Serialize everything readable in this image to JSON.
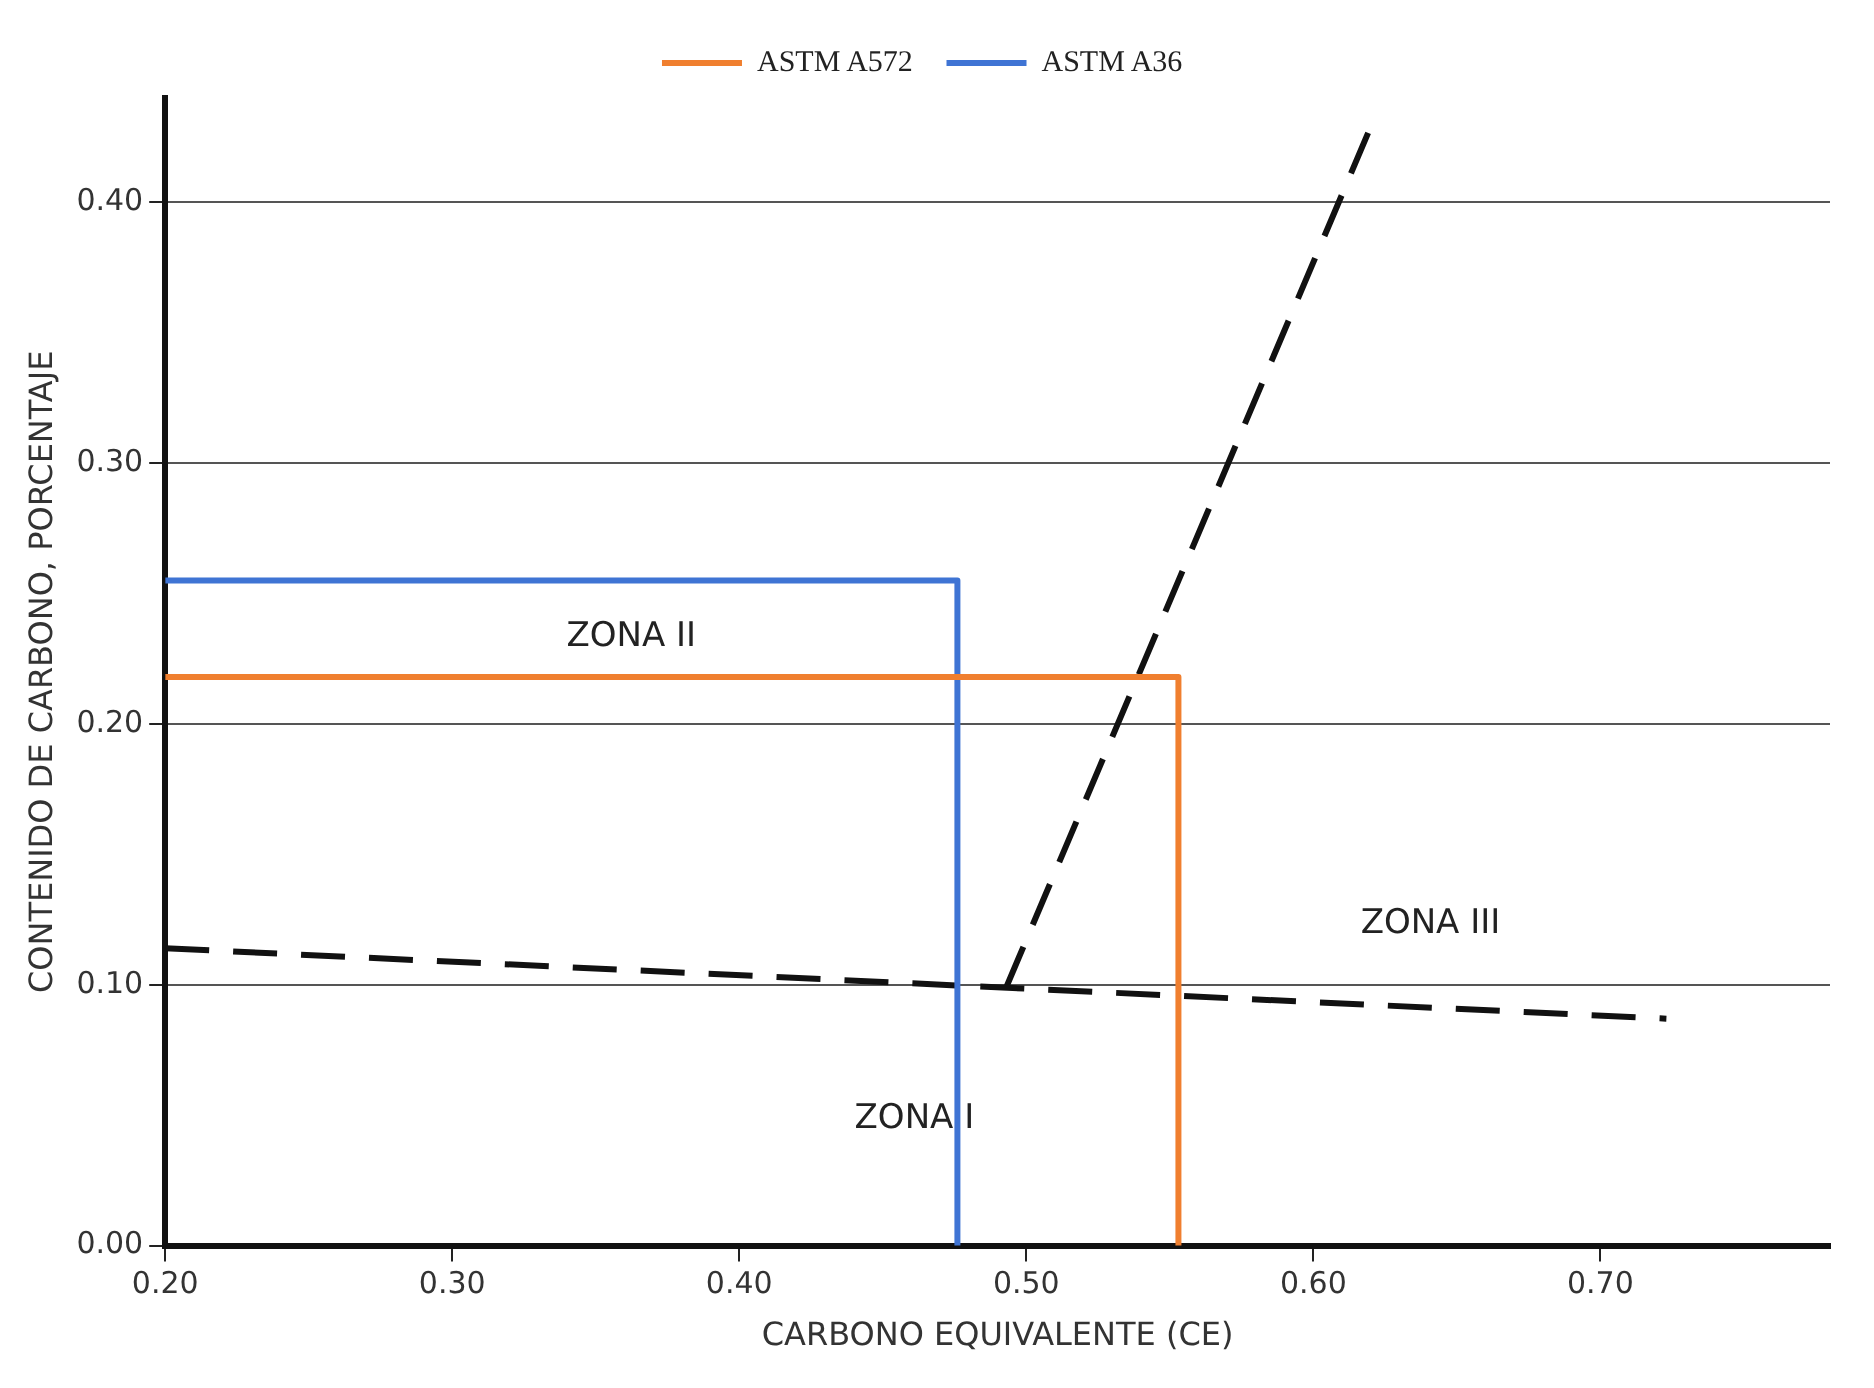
{
  "chart_data": {
    "type": "line",
    "xlabel": "CARBONO EQUIVALENTE (CE)",
    "ylabel": "CONTENIDO DE CARBONO, PORCENTAJE",
    "xlim": [
      0.2,
      0.78
    ],
    "ylim": [
      0,
      0.44
    ],
    "xticks": [
      {
        "value": 0.2,
        "label": "0.20"
      },
      {
        "value": 0.3,
        "label": "0.30"
      },
      {
        "value": 0.4,
        "label": "0.40"
      },
      {
        "value": 0.5,
        "label": "0.50"
      },
      {
        "value": 0.6,
        "label": "0.60"
      },
      {
        "value": 0.7,
        "label": "0.70"
      }
    ],
    "yticks": [
      {
        "value": 0,
        "label": "0.00"
      },
      {
        "value": 0.1,
        "label": "0.10"
      },
      {
        "value": 0.2,
        "label": "0.20"
      },
      {
        "value": 0.3,
        "label": "0.30"
      },
      {
        "value": 0.4,
        "label": "0.40"
      }
    ],
    "grid": "y",
    "legend": "top",
    "marker": "none",
    "series": [
      {
        "name": "ASTM A572",
        "color": "#f07f2f",
        "line_style": "solid",
        "x": [
          0.2,
          0.553,
          0.553
        ],
        "values": [
          0.218,
          0.218,
          0
        ]
      },
      {
        "name": "ASTM A36",
        "color": "#3f74d4",
        "line_style": "solid",
        "x": [
          0.2,
          0.476,
          0.476
        ],
        "values": [
          0.255,
          0.255,
          0
        ]
      },
      {
        "color": "#111111",
        "line_style": "dashed",
        "x": [
          0.2,
          0.723
        ],
        "values": [
          0.114,
          0.087
        ]
      },
      {
        "color": "#111111",
        "line_style": "dashed",
        "x": [
          0.493,
          0.62
        ],
        "values": [
          0.099,
          0.429
        ]
      }
    ],
    "annotations": [
      "ZONA I",
      "ZONA II",
      "ZONA III"
    ]
  }
}
